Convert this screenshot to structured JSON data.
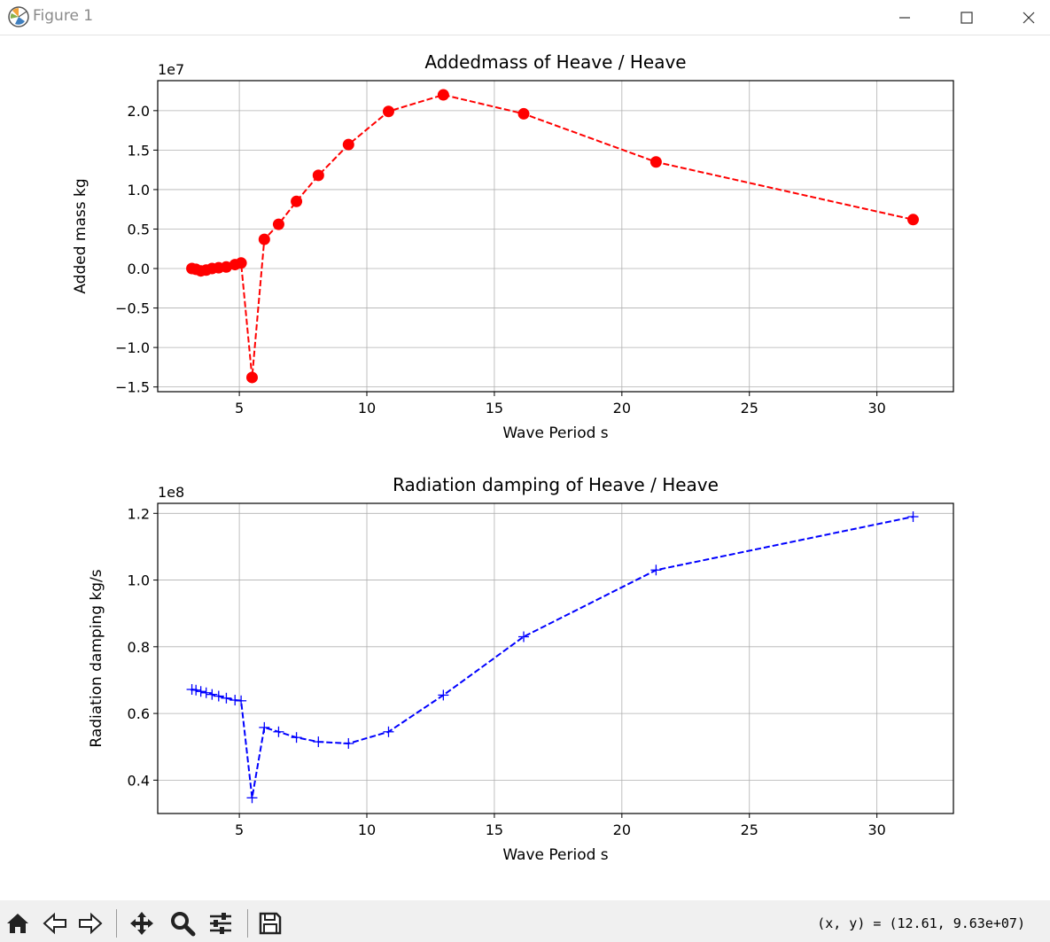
{
  "window": {
    "title": "Figure 1"
  },
  "toolbar": {
    "coords_text": "(x, y) = (12.61, 9.63e+07)",
    "buttons": [
      "home-icon",
      "back-arrow-icon",
      "forward-arrow-icon",
      "pan-icon",
      "zoom-icon",
      "configure-subplots-icon",
      "save-icon"
    ]
  },
  "chart_data": [
    {
      "type": "line",
      "title": "Addedmass of Heave / Heave",
      "xlabel": "Wave Period  s",
      "ylabel": "Added mass  kg",
      "offset_text": "1e7",
      "scale": 10000000,
      "xlim": [
        1.8,
        33.0
      ],
      "ylim": [
        -1.56,
        2.38
      ],
      "xticks": [
        5,
        10,
        15,
        20,
        25,
        30
      ],
      "yticks": [
        -1.5,
        -1.0,
        -0.5,
        0.0,
        0.5,
        1.0,
        1.5,
        2.0
      ],
      "ytick_labels": [
        "−1.5",
        "−1.0",
        "−0.5",
        "0.0",
        "0.5",
        "1.0",
        "1.5",
        "2.0"
      ],
      "grid": true,
      "color": "#ff0000",
      "linestyle": "dashed",
      "marker": "circle",
      "x": [
        3.14,
        3.3,
        3.49,
        3.7,
        3.93,
        4.19,
        4.49,
        4.83,
        5.07,
        5.5,
        5.98,
        6.54,
        7.24,
        8.1,
        9.28,
        10.85,
        13.0,
        16.15,
        21.34,
        31.42
      ],
      "y": [
        0.0,
        -0.01,
        -0.03,
        -0.02,
        0.0,
        0.01,
        0.02,
        0.05,
        0.07,
        -1.38,
        0.37,
        0.56,
        0.85,
        1.18,
        1.57,
        1.99,
        2.2,
        1.96,
        1.35,
        0.62
      ]
    },
    {
      "type": "line",
      "title": "Radiation damping of Heave / Heave",
      "xlabel": "Wave Period  s",
      "ylabel": "Radiation damping  kg/s",
      "offset_text": "1e8",
      "scale": 100000000,
      "xlim": [
        1.8,
        33.0
      ],
      "ylim": [
        0.3,
        1.23
      ],
      "xticks": [
        5,
        10,
        15,
        20,
        25,
        30
      ],
      "yticks": [
        0.4,
        0.6,
        0.8,
        1.0,
        1.2
      ],
      "ytick_labels": [
        "0.4",
        "0.6",
        "0.8",
        "1.0",
        "1.2"
      ],
      "grid": true,
      "color": "#0000ff",
      "linestyle": "dashed",
      "marker": "plus",
      "x": [
        3.14,
        3.3,
        3.49,
        3.7,
        3.93,
        4.19,
        4.49,
        4.83,
        5.07,
        5.5,
        5.98,
        6.54,
        7.24,
        8.1,
        9.28,
        10.85,
        13.0,
        16.15,
        21.34,
        31.42
      ],
      "y": [
        0.672,
        0.67,
        0.666,
        0.662,
        0.657,
        0.652,
        0.646,
        0.64,
        0.638,
        0.347,
        0.558,
        0.545,
        0.528,
        0.515,
        0.51,
        0.545,
        0.655,
        0.83,
        1.03,
        1.19
      ]
    }
  ]
}
